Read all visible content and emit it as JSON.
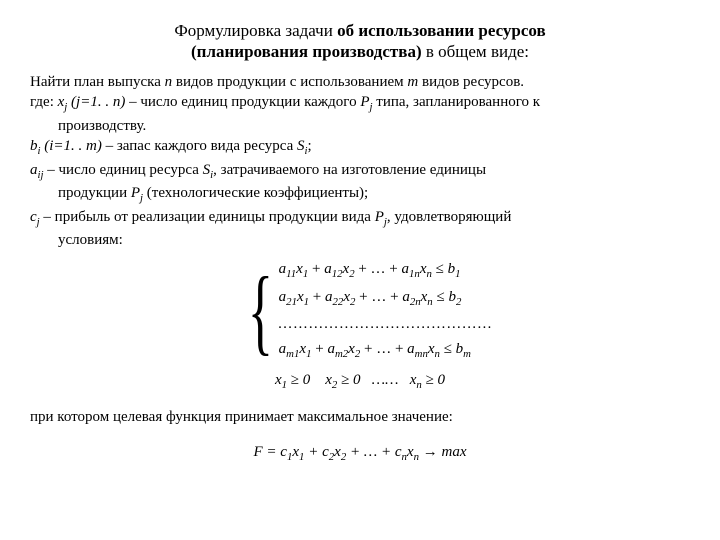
{
  "title": {
    "line1_pre": "Формулировка задачи ",
    "line1_bold": "об использовании ресурсов",
    "line2_bold": "(планирования производства)",
    "line2_post": " в общем виде:"
  },
  "body": {
    "p1_a": "Найти план выпуска ",
    "p1_n": "n",
    "p1_b": " видов продукции с использованием ",
    "p1_m": "m",
    "p1_c": " видов ресурсов.",
    "p2_a": "где: ",
    "p2_xj": "x",
    "p2_j": "j",
    "p2_b": " (j=1. . n)",
    "p2_c": " – число единиц продукции каждого ",
    "p2_Pj": "P",
    "p2_d": " типа, запланированного к",
    "p2_e": "производству.",
    "p3_a": "b",
    "p3_i": "i",
    "p3_b": " (i=1. . m)",
    "p3_c": " – запас каждого вида ресурса ",
    "p3_Si": "S",
    "p3_d": ";",
    "p4_a": "a",
    "p4_ij": "ij",
    "p4_b": " – число единиц ресурса ",
    "p4_Si": "S",
    "p4_c": ", затрачиваемого на изготовление единицы",
    "p4_d": "продукции ",
    "p4_Pj": "P",
    "p4_e": " (технологические коэффициенты);",
    "p5_a": "c",
    "p5_j": "j",
    "p5_b": " – прибыль от реализации единицы продукции вида ",
    "p5_Pj": "P",
    "p5_c": ", удовлетворяющий",
    "p5_d": "условиям:"
  },
  "math": {
    "row1": "a₁₁x₁ + a₁₂x₂ + … + a₁ₙxₙ ≤ b₁",
    "row2": "a₂₁x₁ + a₂₂x₂ + … + a₂ₙxₙ ≤ b₂",
    "dots": "……………………………………",
    "rowm": "aₘ₁x₁ + aₘ₂x₂ + … + aₘₙxₙ ≤ bₘ",
    "nonneg": "x₁ ≥ 0    x₂ ≥ 0   ……   xₙ ≥ 0"
  },
  "closing": "при котором целевая функция принимает максимальное значение:",
  "objective": "F = c₁x₁ + c₂x₂ + … + cₙxₙ → max",
  "style": {
    "background": "#ffffff",
    "text_color": "#000000",
    "title_fontsize": 17,
    "body_fontsize": 15,
    "font_family": "Times New Roman"
  }
}
